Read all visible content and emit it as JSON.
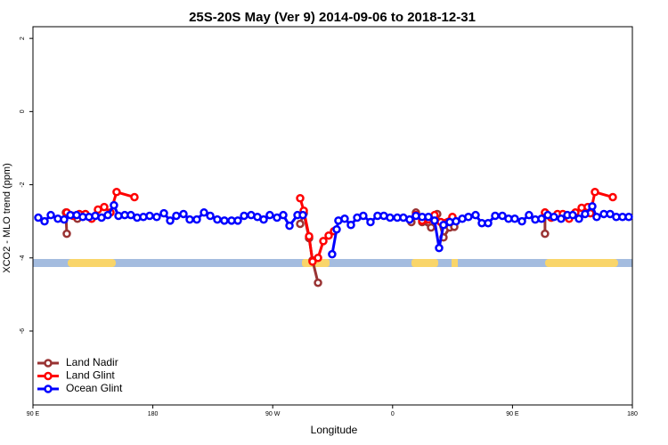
{
  "chart_data": {
    "type": "line",
    "title": "25S-20S May (Ver 9)   2014-09-06 to 2018-12-31",
    "x_label": "Longitude",
    "y_label": "XCO2 - MLO trend (ppm)",
    "xlim": [
      90,
      540
    ],
    "ylim": [
      -8.02,
      2.32
    ],
    "xticks": [
      {
        "value": 90,
        "label": "90 E"
      },
      {
        "value": 180,
        "label": "180"
      },
      {
        "value": 270,
        "label": "90 W"
      },
      {
        "value": 360,
        "label": "0"
      },
      {
        "value": 450,
        "label": "90 E"
      },
      {
        "value": 540,
        "label": "180"
      }
    ],
    "yticks": [
      2,
      0,
      -2,
      -4,
      -6
    ],
    "legend": "bottom-left",
    "series": [
      {
        "name": "Land Nadir",
        "color": "#993333",
        "x": [
          115.4,
          114.7,
          123.4,
          200,
          290.6,
          293.3,
          297.3,
          299.9,
          304.0,
          330,
          374.1,
          377.5,
          382.2,
          388.9,
          393.5,
          398.2,
          402.9,
          406.3,
          430,
          474.4,
          474.4,
          479.1
        ],
        "values": [
          -3.34,
          -2.76,
          -2.93,
          null,
          -3.07,
          -2.78,
          -3.46,
          -4.07,
          -4.68,
          null,
          -3.02,
          -2.76,
          -3.02,
          -3.17,
          -2.8,
          -3.44,
          -3.17,
          -3.15,
          null,
          -3.34,
          -2.76,
          -2.9
        ]
      },
      {
        "name": "Land Glint",
        "color": "#ff0000",
        "x": [
          115.4,
          120.1,
          124.8,
          129.4,
          134.1,
          138.8,
          143.5,
          148.2,
          152.8,
          166.2,
          240,
          290.6,
          293.3,
          297.3,
          299.9,
          304.0,
          308.0,
          312.0,
          316.0,
          345,
          377.5,
          382.2,
          386.9,
          391.5,
          396.2,
          404.9,
          430,
          474.4,
          479.1,
          483.8,
          487.8,
          492.5,
          497.2,
          501.9,
          506.5,
          508.5,
          511.9,
          525.3
        ],
        "values": [
          -2.76,
          -2.85,
          -2.8,
          -2.8,
          -2.93,
          -2.68,
          -2.61,
          -2.76,
          -2.2,
          -2.34,
          null,
          -2.37,
          -2.71,
          -3.41,
          -4.1,
          -4.0,
          -3.54,
          -3.39,
          -3.27,
          null,
          -2.83,
          -2.98,
          -2.95,
          -2.83,
          -3.02,
          -2.88,
          null,
          -2.76,
          -2.9,
          -2.8,
          -2.8,
          -2.93,
          -2.76,
          -2.63,
          -2.61,
          -2.78,
          -2.2,
          -2.34
        ]
      },
      {
        "name": "Ocean Glint",
        "color": "#0000ff",
        "x": [
          94.0,
          98.7,
          103.4,
          108.7,
          113.4,
          118.1,
          122.8,
          127.4,
          132.1,
          136.8,
          141.5,
          146.2,
          150.8,
          154.2,
          158.9,
          163.5,
          168.2,
          172.9,
          177.6,
          182.9,
          188.3,
          193.0,
          197.6,
          203.0,
          207.7,
          213.0,
          218.4,
          223.1,
          228.4,
          233.7,
          239.1,
          243.8,
          248.5,
          253.8,
          258.5,
          263.2,
          267.8,
          273.2,
          277.9,
          282.6,
          288.6,
          292.6,
          303,
          314.6,
          318.0,
          319.3,
          324.0,
          328.7,
          333.4,
          338.0,
          343.4,
          348.7,
          353.4,
          358.1,
          363.5,
          368.1,
          372.8,
          377.5,
          382.2,
          386.9,
          391.5,
          394.9,
          398.2,
          402.9,
          407.6,
          412.3,
          416.9,
          422.3,
          427.0,
          431.7,
          437.0,
          442.4,
          447.0,
          451.7,
          457.1,
          462.4,
          467.1,
          471.8,
          476.5,
          481.1,
          486.5,
          491.2,
          495.2,
          499.9,
          504.5,
          509.9,
          513.2,
          518.6,
          523.3,
          527.9,
          532.6,
          537.3
        ],
        "values": [
          -2.9,
          -3.0,
          -2.83,
          -2.93,
          -2.95,
          -2.83,
          -2.83,
          -2.88,
          -2.88,
          -2.85,
          -2.9,
          -2.83,
          -2.56,
          -2.85,
          -2.83,
          -2.83,
          -2.9,
          -2.88,
          -2.85,
          -2.88,
          -2.78,
          -2.98,
          -2.85,
          -2.8,
          -2.95,
          -2.95,
          -2.76,
          -2.85,
          -2.95,
          -2.98,
          -2.98,
          -2.98,
          -2.85,
          -2.83,
          -2.88,
          -2.95,
          -2.83,
          -2.9,
          -2.83,
          -3.12,
          -2.83,
          -2.83,
          null,
          -3.9,
          -3.22,
          -2.98,
          -2.93,
          -3.1,
          -2.9,
          -2.85,
          -3.02,
          -2.85,
          -2.85,
          -2.9,
          -2.9,
          -2.9,
          -2.95,
          -2.85,
          -2.88,
          -2.88,
          -2.98,
          -3.73,
          -3.1,
          -3.02,
          -3.0,
          -2.93,
          -2.88,
          -2.83,
          -3.05,
          -3.05,
          -2.85,
          -2.85,
          -2.93,
          -2.93,
          -3.0,
          -2.83,
          -2.95,
          -2.93,
          -2.83,
          -2.88,
          -2.93,
          -2.83,
          -2.83,
          -2.93,
          -2.8,
          -2.59,
          -2.88,
          -2.8,
          -2.8,
          -2.88,
          -2.88,
          -2.88
        ]
      }
    ]
  }
}
